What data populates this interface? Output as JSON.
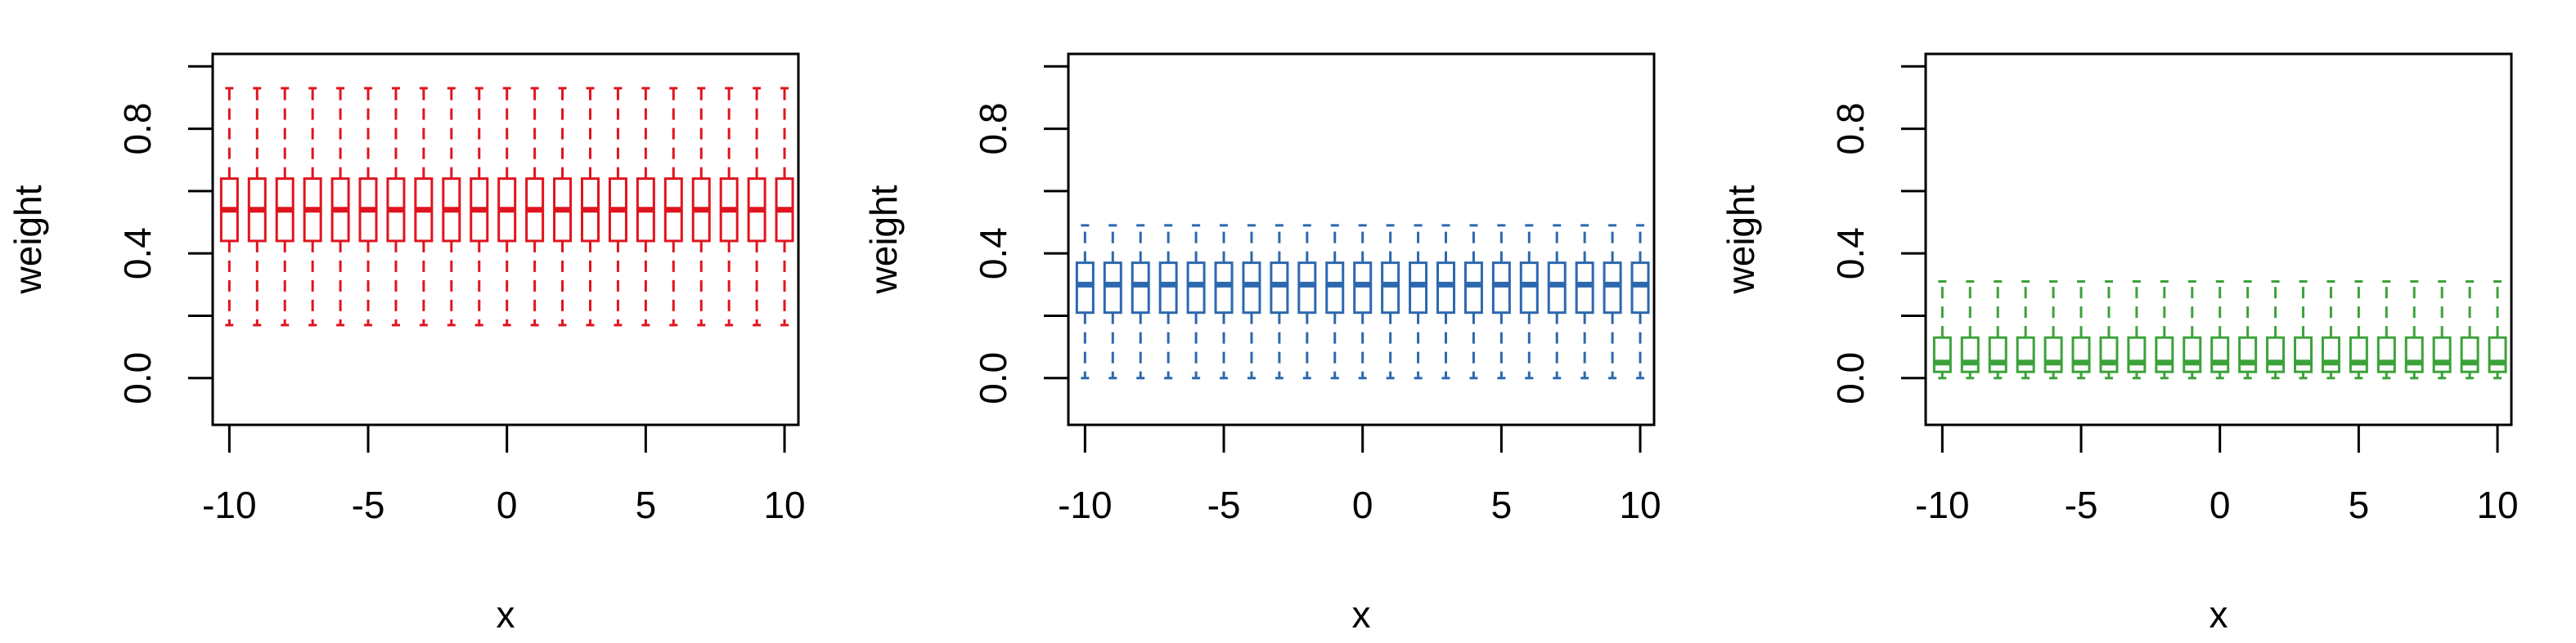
{
  "chart_data": [
    {
      "type": "box",
      "color": "#e0141e",
      "xlabel": "x",
      "ylabel": "weight",
      "x": [
        -10,
        -9,
        -8,
        -7,
        -6,
        -5,
        -4,
        -3,
        -2,
        -1,
        0,
        1,
        2,
        3,
        4,
        5,
        6,
        7,
        8,
        9,
        10
      ],
      "whislo": [
        0.17,
        0.17,
        0.17,
        0.17,
        0.17,
        0.17,
        0.17,
        0.17,
        0.17,
        0.17,
        0.17,
        0.17,
        0.17,
        0.17,
        0.17,
        0.17,
        0.17,
        0.17,
        0.17,
        0.17,
        0.17
      ],
      "q1": [
        0.44,
        0.44,
        0.44,
        0.44,
        0.44,
        0.44,
        0.44,
        0.44,
        0.44,
        0.44,
        0.44,
        0.44,
        0.44,
        0.44,
        0.44,
        0.44,
        0.44,
        0.44,
        0.44,
        0.44,
        0.44
      ],
      "median": [
        0.54,
        0.54,
        0.54,
        0.54,
        0.54,
        0.54,
        0.54,
        0.54,
        0.54,
        0.54,
        0.54,
        0.54,
        0.54,
        0.54,
        0.54,
        0.54,
        0.54,
        0.54,
        0.54,
        0.54,
        0.54
      ],
      "q3": [
        0.64,
        0.64,
        0.64,
        0.64,
        0.64,
        0.64,
        0.64,
        0.64,
        0.64,
        0.64,
        0.64,
        0.64,
        0.64,
        0.64,
        0.64,
        0.64,
        0.64,
        0.64,
        0.64,
        0.64,
        0.64
      ],
      "whishi": [
        0.93,
        0.93,
        0.93,
        0.93,
        0.93,
        0.93,
        0.93,
        0.93,
        0.93,
        0.93,
        0.93,
        0.93,
        0.93,
        0.93,
        0.93,
        0.93,
        0.93,
        0.93,
        0.93,
        0.93,
        0.93
      ],
      "xlim": [
        -10.6,
        10.5
      ],
      "ylim": [
        -0.15,
        1.04
      ],
      "xticks": [
        -10,
        -5,
        0,
        5,
        10
      ],
      "yticks": [
        {
          "value": 0,
          "label": "0.0"
        },
        {
          "value": 0.4,
          "label": "0.4"
        },
        {
          "value": 0.8,
          "label": "0.8"
        }
      ],
      "yticks_minor": [
        0.2,
        0.6,
        1.0
      ]
    },
    {
      "type": "box",
      "color": "#2c68ae",
      "xlabel": "x",
      "ylabel": "weight",
      "x": [
        -10,
        -9,
        -8,
        -7,
        -6,
        -5,
        -4,
        -3,
        -2,
        -1,
        0,
        1,
        2,
        3,
        4,
        5,
        6,
        7,
        8,
        9,
        10
      ],
      "whislo": [
        0,
        0,
        0,
        0,
        0,
        0,
        0,
        0,
        0,
        0,
        0,
        0,
        0,
        0,
        0,
        0,
        0,
        0,
        0,
        0,
        0
      ],
      "q1": [
        0.21,
        0.21,
        0.21,
        0.21,
        0.21,
        0.21,
        0.21,
        0.21,
        0.21,
        0.21,
        0.21,
        0.21,
        0.21,
        0.21,
        0.21,
        0.21,
        0.21,
        0.21,
        0.21,
        0.21,
        0.21
      ],
      "median": [
        0.3,
        0.3,
        0.3,
        0.3,
        0.3,
        0.3,
        0.3,
        0.3,
        0.3,
        0.3,
        0.3,
        0.3,
        0.3,
        0.3,
        0.3,
        0.3,
        0.3,
        0.3,
        0.3,
        0.3,
        0.3
      ],
      "q3": [
        0.37,
        0.37,
        0.37,
        0.37,
        0.37,
        0.37,
        0.37,
        0.37,
        0.37,
        0.37,
        0.37,
        0.37,
        0.37,
        0.37,
        0.37,
        0.37,
        0.37,
        0.37,
        0.37,
        0.37,
        0.37
      ],
      "whishi": [
        0.49,
        0.49,
        0.49,
        0.49,
        0.49,
        0.49,
        0.49,
        0.49,
        0.49,
        0.49,
        0.49,
        0.49,
        0.49,
        0.49,
        0.49,
        0.49,
        0.49,
        0.49,
        0.49,
        0.49,
        0.49
      ],
      "xlim": [
        -10.6,
        10.5
      ],
      "ylim": [
        -0.15,
        1.04
      ],
      "xticks": [
        -10,
        -5,
        0,
        5,
        10
      ],
      "yticks": [
        {
          "value": 0,
          "label": "0.0"
        },
        {
          "value": 0.4,
          "label": "0.4"
        },
        {
          "value": 0.8,
          "label": "0.8"
        }
      ],
      "yticks_minor": [
        0.2,
        0.6,
        1.0
      ]
    },
    {
      "type": "box",
      "color": "#3ca23a",
      "xlabel": "x",
      "ylabel": "weight",
      "x": [
        -10,
        -9,
        -8,
        -7,
        -6,
        -5,
        -4,
        -3,
        -2,
        -1,
        0,
        1,
        2,
        3,
        4,
        5,
        6,
        7,
        8,
        9,
        10
      ],
      "whislo": [
        0,
        0,
        0,
        0,
        0,
        0,
        0,
        0,
        0,
        0,
        0,
        0,
        0,
        0,
        0,
        0,
        0,
        0,
        0,
        0,
        0
      ],
      "q1": [
        0.02,
        0.02,
        0.02,
        0.02,
        0.02,
        0.02,
        0.02,
        0.02,
        0.02,
        0.02,
        0.02,
        0.02,
        0.02,
        0.02,
        0.02,
        0.02,
        0.02,
        0.02,
        0.02,
        0.02,
        0.02
      ],
      "median": [
        0.05,
        0.05,
        0.05,
        0.05,
        0.05,
        0.05,
        0.05,
        0.05,
        0.05,
        0.05,
        0.05,
        0.05,
        0.05,
        0.05,
        0.05,
        0.05,
        0.05,
        0.05,
        0.05,
        0.05,
        0.05
      ],
      "q3": [
        0.13,
        0.13,
        0.13,
        0.13,
        0.13,
        0.13,
        0.13,
        0.13,
        0.13,
        0.13,
        0.13,
        0.13,
        0.13,
        0.13,
        0.13,
        0.13,
        0.13,
        0.13,
        0.13,
        0.13,
        0.13
      ],
      "whishi": [
        0.31,
        0.31,
        0.31,
        0.31,
        0.31,
        0.31,
        0.31,
        0.31,
        0.31,
        0.31,
        0.31,
        0.31,
        0.31,
        0.31,
        0.31,
        0.31,
        0.31,
        0.31,
        0.31,
        0.31,
        0.31
      ],
      "xlim": [
        -10.6,
        10.5
      ],
      "ylim": [
        -0.15,
        1.04
      ],
      "xticks": [
        -10,
        -5,
        0,
        5,
        10
      ],
      "yticks": [
        {
          "value": 0,
          "label": "0.0"
        },
        {
          "value": 0.4,
          "label": "0.4"
        },
        {
          "value": 0.8,
          "label": "0.8"
        }
      ],
      "yticks_minor": [
        0.2,
        0.6,
        1.0
      ]
    }
  ]
}
